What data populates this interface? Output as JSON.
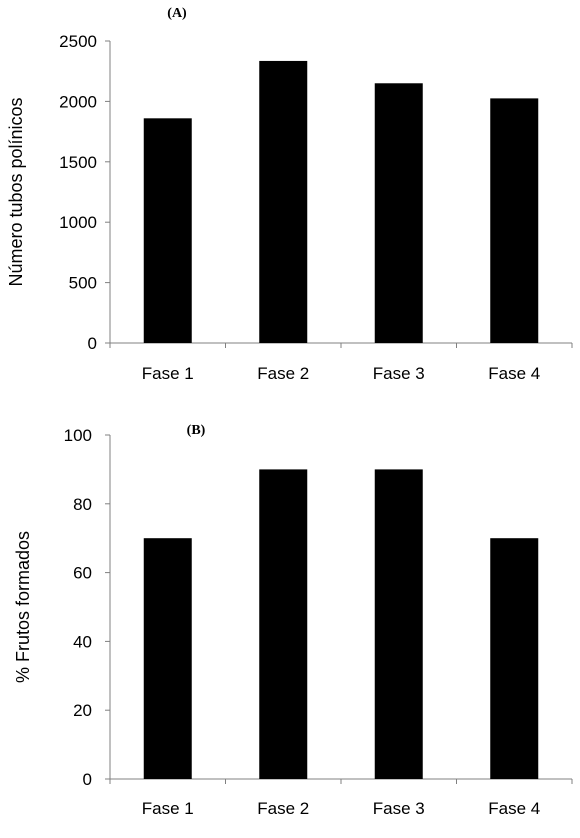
{
  "figure": {
    "background": "#ffffff",
    "bar_color": "#000000",
    "axis_color": "#808080"
  },
  "chart_data": [
    {
      "type": "bar",
      "panel_label": "(A)",
      "categories": [
        "Fase 1",
        "Fase 2",
        "Fase 3",
        "Fase 4"
      ],
      "values": [
        1860,
        2335,
        2150,
        2025
      ],
      "ylabel": "Número tubos polínicos",
      "xlabel": "",
      "ylim": [
        0,
        2500
      ],
      "yticks": [
        0,
        500,
        1000,
        1500,
        2000,
        2500
      ],
      "yticklabels": [
        "0",
        "500",
        "1000",
        "1500",
        "2000",
        "2500"
      ],
      "grid": false,
      "legend": "none"
    },
    {
      "type": "bar",
      "panel_label": "(B)",
      "categories": [
        "Fase 1",
        "Fase 2",
        "Fase 3",
        "Fase 4"
      ],
      "values": [
        70,
        90,
        90,
        70
      ],
      "ylabel": "% Frutos formados",
      "xlabel": "",
      "ylim": [
        0,
        100
      ],
      "yticks": [
        0,
        20,
        40,
        60,
        80,
        100
      ],
      "yticklabels": [
        "0",
        "20",
        "40",
        "60",
        "80",
        "100"
      ],
      "grid": false,
      "legend": "none"
    }
  ]
}
